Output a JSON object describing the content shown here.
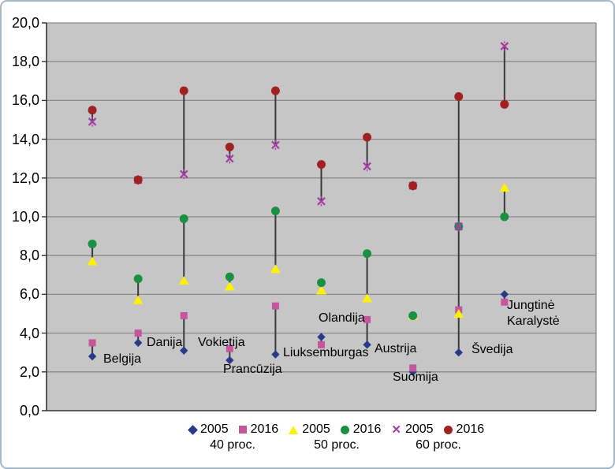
{
  "window": {
    "background": "#ffffff",
    "frame_border_color": "#a3b8cc"
  },
  "chart_data": {
    "type": "scatter",
    "title": "",
    "xlabel": "",
    "ylabel": "",
    "plot_bg": "#c6c6c6",
    "grid_color": "#8a8a8a",
    "axis_color": "#333333",
    "connector_color": "#3a3a3a",
    "grid": true,
    "y_axis": {
      "min": 0,
      "max": 20,
      "step": 2,
      "tick_labels": [
        "20,0",
        "18,0",
        "16,0",
        "14,0",
        "12,0",
        "10,0",
        "8,0",
        "6,0",
        "4,0",
        "2,0",
        "0,0"
      ]
    },
    "categories": [
      "Belgija",
      "Danija",
      "Vokietija",
      "Prancūzija",
      "Liuksemburgas",
      "Olandija",
      "Austrija",
      "Suomija",
      "Švedija",
      "Jungtinė Karalystė"
    ],
    "series": [
      {
        "name": "2005",
        "group": "40 proc.",
        "marker": "diamond",
        "color": "#293a87",
        "values": [
          2.8,
          3.5,
          3.1,
          2.6,
          2.9,
          3.8,
          3.4,
          2.0,
          3.0,
          6.0
        ]
      },
      {
        "name": "2016",
        "group": "40 proc.",
        "marker": "square",
        "color": "#c4569e",
        "values": [
          3.5,
          4.0,
          4.9,
          3.2,
          5.4,
          3.4,
          4.7,
          2.2,
          5.2,
          5.6
        ]
      },
      {
        "name": "2005",
        "group": "50 proc.",
        "marker": "triangle",
        "color": "#fff100",
        "values": [
          7.7,
          5.7,
          6.7,
          6.4,
          7.3,
          6.2,
          5.8,
          4.9,
          5.0,
          11.5
        ]
      },
      {
        "name": "2016",
        "group": "50 proc.",
        "marker": "circle",
        "color": "#1a9142",
        "values": [
          8.6,
          6.8,
          9.9,
          6.9,
          10.3,
          6.6,
          8.1,
          4.9,
          9.5,
          10.0
        ]
      },
      {
        "name": "2005",
        "group": "60 proc.",
        "marker": "x",
        "color": "#a43fa4",
        "values": [
          14.9,
          11.9,
          12.2,
          13.0,
          13.7,
          10.8,
          12.6,
          11.6,
          9.5,
          18.8
        ]
      },
      {
        "name": "2016",
        "group": "60 proc.",
        "marker": "circle",
        "color": "#a12121",
        "values": [
          15.5,
          11.9,
          16.5,
          13.6,
          16.5,
          12.7,
          14.1,
          11.6,
          16.2,
          15.8
        ]
      }
    ],
    "connectors": "vertical line linking each 2005 marker to its 2016 marker per percentage group",
    "legend_position": "bottom",
    "legend": {
      "entries": [
        {
          "label": "2005",
          "marker": "diamond",
          "color": "#293a87"
        },
        {
          "label": "2016",
          "marker": "square",
          "color": "#c4569e"
        },
        {
          "label": "2005",
          "marker": "triangle",
          "color": "#fff100"
        },
        {
          "label": "2016",
          "marker": "circle",
          "color": "#1a9142"
        },
        {
          "label": "2005",
          "marker": "x",
          "color": "#a43fa4"
        },
        {
          "label": "2016",
          "marker": "circle",
          "color": "#a12121"
        }
      ],
      "groups": [
        "40 proc.",
        "50 proc.",
        "60 proc."
      ]
    }
  }
}
